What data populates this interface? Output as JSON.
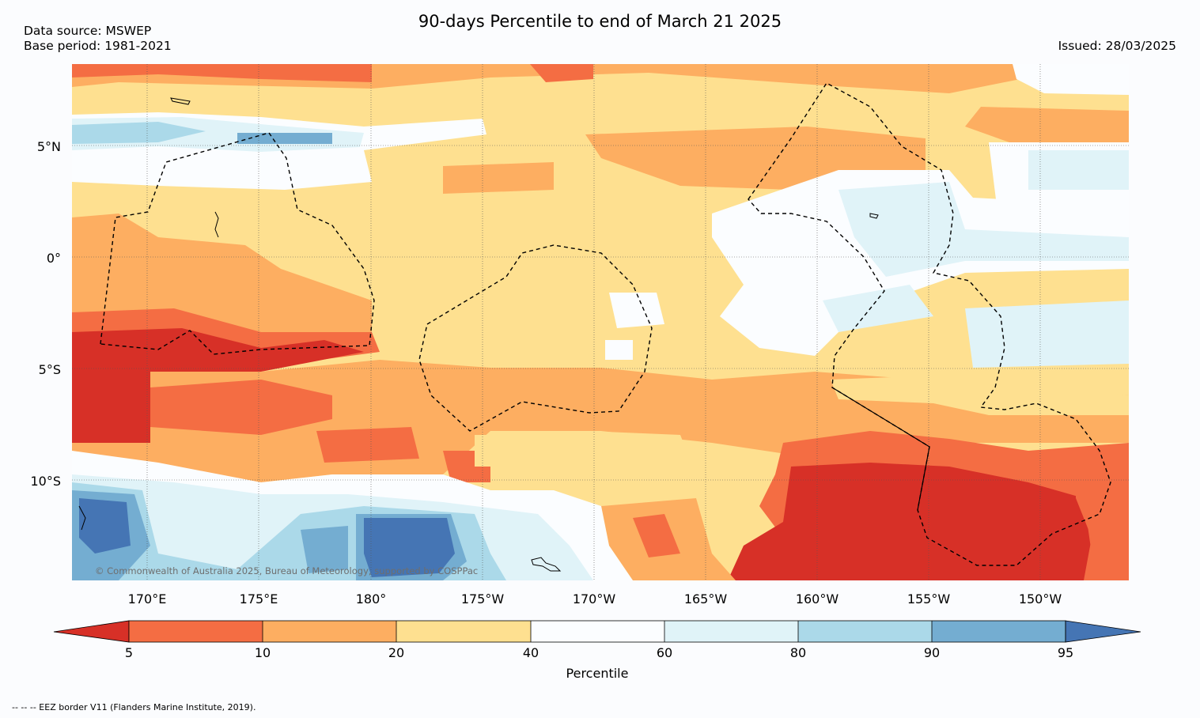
{
  "header": {
    "title": "90-days Percentile to end of March 21 2025",
    "data_source": "Data source: MSWEP",
    "base_period": "Base period: 1981-2021",
    "issued": "Issued: 28/03/2025"
  },
  "map": {
    "lat_labels": [
      "5°N",
      "0°",
      "5°S",
      "10°S"
    ],
    "lon_labels": [
      "170°E",
      "175°E",
      "180°",
      "175°W",
      "170°W",
      "165°W",
      "160°W",
      "155°W",
      "150°W"
    ],
    "credit": "© Commonwealth of Australia 2025, Bureau of Meteorology, supported by COSPPac"
  },
  "colorbar": {
    "label": "Percentile",
    "ticks": [
      "5",
      "10",
      "20",
      "40",
      "60",
      "80",
      "90",
      "95"
    ],
    "colors": {
      "below_5": "#d73027",
      "5_10": "#f46d43",
      "10_20": "#fdae61",
      "20_40": "#fee090",
      "40_60": "#fbfdff",
      "60_80": "#e0f3f8",
      "80_90": "#abd9e9",
      "90_95": "#74add1",
      "above_95": "#4575b4"
    }
  },
  "footnote": "-- -- -- EEZ border V11 (Flanders Marine Institute, 2019)."
}
